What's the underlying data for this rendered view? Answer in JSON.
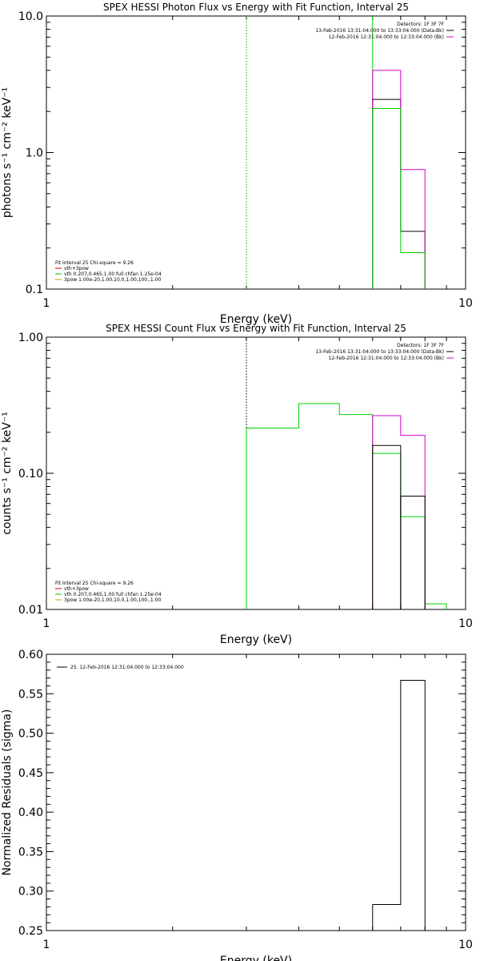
{
  "chart_data": [
    {
      "type": "line",
      "title": "SPEX HESSI Photon Flux vs Energy with Fit Function, Interval 25",
      "xlabel": "Energy (keV)",
      "ylabel": "photons s⁻¹ cm⁻² keV⁻¹",
      "xscale": "log",
      "yscale": "log",
      "xlim": [
        1,
        10
      ],
      "ylim": [
        0.1,
        10
      ],
      "xticks": [
        "1",
        "10"
      ],
      "yticks": [
        "0.1",
        "1.0",
        "10.0"
      ],
      "vlines": [
        {
          "x": 3.0,
          "color": "#00b000",
          "style": "dotted"
        },
        {
          "x": 6.0,
          "color": "#00d000",
          "style": "solid"
        }
      ],
      "legend_top_right": {
        "placement": "top-right",
        "entries": [
          {
            "text": "Detectors: 1F 3F 7F",
            "color": ""
          },
          {
            "text": "13-Feb-2016 13:31:04.000 to 13:33:04.000 (Data-Bk)",
            "color": "#000000"
          },
          {
            "text": "12-Feb-2016 12:31:04.000 to 12:33:04.000 (Bk)",
            "color": "#d000d0"
          }
        ]
      },
      "legend_bottom_left": {
        "placement": "bottom-left",
        "header": "Fit Interval 25   Chi-square = 9.26",
        "entries": [
          {
            "text": "vth+3pow",
            "color": "#d00000"
          },
          {
            "text": "vth 0.207,0.465,1.00  full chfan 1.25e-04",
            "color": "#00c000"
          },
          {
            "text": "3pow 1.00e-20,1.00,10.0,1.00,100.,1.00",
            "color": "#c8a000"
          }
        ]
      },
      "series": [
        {
          "color": "#000000",
          "edges": [
            6.0,
            7.0,
            8.0
          ],
          "values": [
            2.45,
            0.265
          ]
        },
        {
          "color": "#d000d0",
          "edges": [
            6.0,
            7.0,
            8.0
          ],
          "values": [
            4.0,
            0.75
          ]
        },
        {
          "color": "#00d000",
          "edges": [
            6.0,
            7.0,
            8.0
          ],
          "values": [
            2.1,
            0.185
          ]
        }
      ]
    },
    {
      "type": "line",
      "title": "SPEX HESSI Count Flux vs Energy with Fit Function, Interval 25",
      "xlabel": "Energy (keV)",
      "ylabel": "counts s⁻¹ cm⁻² keV⁻¹",
      "xscale": "log",
      "yscale": "log",
      "xlim": [
        1,
        10
      ],
      "ylim": [
        0.01,
        1.0
      ],
      "xticks": [
        "1",
        "10"
      ],
      "yticks": [
        "0.01",
        "0.10",
        "1.00"
      ],
      "vlines": [
        {
          "x": 3.0,
          "color": "#000000",
          "style": "dotted"
        }
      ],
      "legend_top_right": {
        "placement": "top-right",
        "entries": [
          {
            "text": "Detectors: 1F 3F 7F",
            "color": ""
          },
          {
            "text": "13-Feb-2016 13:31:04.000 to 13:33:04.000 (Data-Bk)",
            "color": "#000000"
          },
          {
            "text": "12-Feb-2016 12:31:04.000 to 12:33:04.000 (Bk)",
            "color": "#d000d0"
          }
        ]
      },
      "legend_bottom_left": {
        "placement": "bottom-left",
        "header": "Fit Interval 25   Chi-square = 9.26",
        "entries": [
          {
            "text": "vth+3pow",
            "color": "#d00000"
          },
          {
            "text": "vth 0.207,0.465,1.00  full chfan 1.25e-04",
            "color": "#00c000"
          },
          {
            "text": "3pow 1.00e-20,1.00,10.0,1.00,100.,1.00",
            "color": "#c8a000"
          }
        ]
      },
      "series": [
        {
          "color": "#00d000",
          "edges": [
            3.0,
            4.0,
            5.0,
            6.0,
            7.0,
            8.0,
            9.0
          ],
          "values": [
            0.215,
            0.325,
            0.27,
            0.14,
            0.048,
            0.011
          ]
        },
        {
          "color": "#d000d0",
          "edges": [
            6.0,
            7.0,
            8.0
          ],
          "values": [
            0.265,
            0.19
          ]
        },
        {
          "color": "#000000",
          "edges": [
            6.0,
            7.0
          ],
          "values": [
            0.16
          ]
        },
        {
          "color": "#000000",
          "edges": [
            7.0,
            8.0
          ],
          "values": [
            0.068
          ]
        }
      ]
    },
    {
      "type": "line",
      "title": "",
      "xlabel": "Energy (keV)",
      "ylabel": "Normalized Residuals (sigma)",
      "xscale": "log",
      "yscale": "linear",
      "xlim": [
        1,
        10
      ],
      "ylim": [
        0.25,
        0.6
      ],
      "xticks": [
        "1",
        "10"
      ],
      "yticks": [
        "0.25",
        "0.30",
        "0.35",
        "0.40",
        "0.45",
        "0.50",
        "0.55",
        "0.60"
      ],
      "vlines": [],
      "legend_top_left": {
        "placement": "top-left",
        "entries": [
          {
            "text": "25. 12-Feb-2016 12:31:04.000 to 12:33:04.000",
            "color": "#000000"
          }
        ]
      },
      "series": [
        {
          "color": "#000000",
          "edges": [
            6.0,
            7.0,
            8.0
          ],
          "values": [
            0.283,
            0.567
          ]
        }
      ]
    }
  ]
}
